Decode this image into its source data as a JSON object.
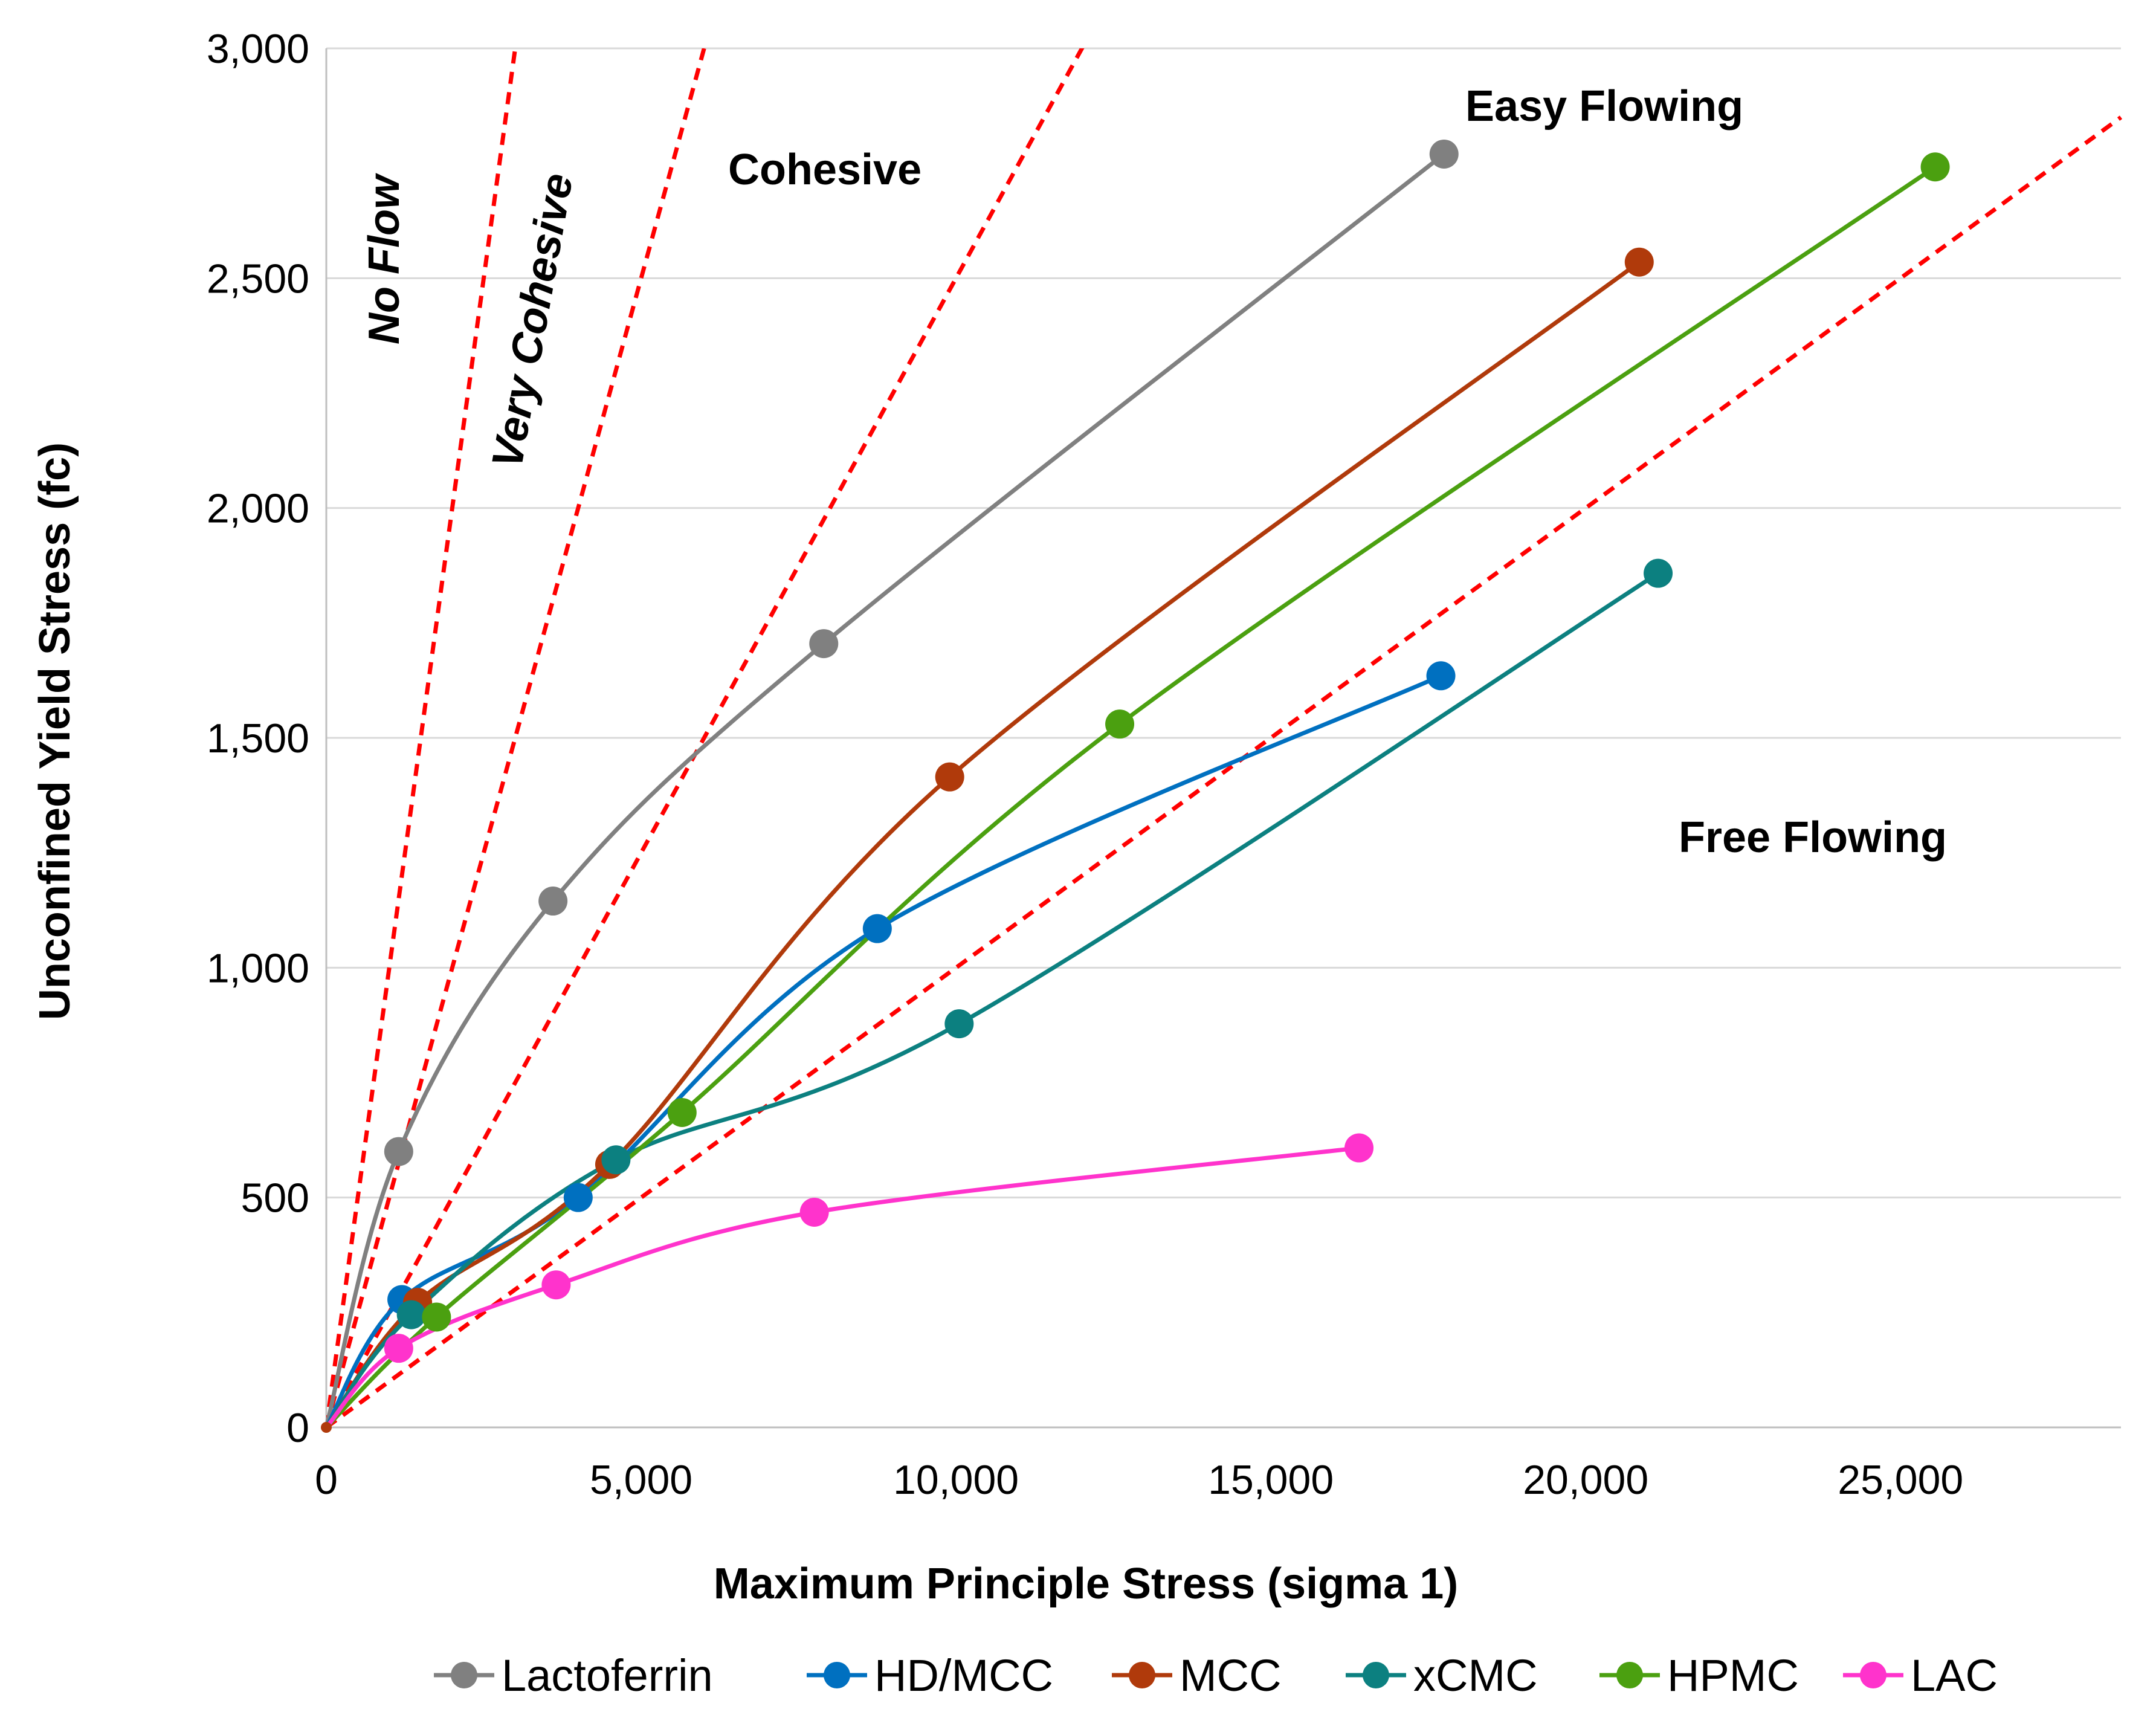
{
  "chart_data": {
    "type": "line",
    "title": "",
    "xlabel": "Maximum Principle Stress (sigma 1)",
    "ylabel": "Unconfined Yield Stress (fc)",
    "xlim": [
      0,
      28500
    ],
    "ylim": [
      0,
      3000
    ],
    "x_ticks": [
      0,
      5000,
      10000,
      15000,
      20000,
      25000
    ],
    "x_tick_labels": [
      "0",
      "5,000",
      "10,000",
      "15,000",
      "20,000",
      "25,000"
    ],
    "y_ticks": [
      0,
      500,
      1000,
      1500,
      2000,
      2500,
      3000
    ],
    "y_tick_labels": [
      "0",
      "500",
      "1,000",
      "1,500",
      "2,000",
      "2,500",
      "3,000"
    ],
    "grid": "horizontal",
    "legend_position": "bottom",
    "series": [
      {
        "name": "Lactoferrin",
        "color": "#808080",
        "points": [
          [
            1150,
            600
          ],
          [
            3600,
            1145
          ],
          [
            7900,
            1705
          ],
          [
            17750,
            2770
          ]
        ]
      },
      {
        "name": "HD/MCC",
        "color": "#0070C0",
        "points": [
          [
            1200,
            278
          ],
          [
            4000,
            500
          ],
          [
            8750,
            1085
          ],
          [
            17700,
            1635
          ]
        ]
      },
      {
        "name": "MCC",
        "color": "#B03A0B",
        "points": [
          [
            1450,
            272
          ],
          [
            4500,
            572
          ],
          [
            9900,
            1415
          ],
          [
            20850,
            2535
          ]
        ]
      },
      {
        "name": "xCMC",
        "color": "#0C8080",
        "points": [
          [
            1350,
            245
          ],
          [
            4600,
            582
          ],
          [
            10050,
            878
          ],
          [
            21150,
            1858
          ]
        ]
      },
      {
        "name": "HPMC",
        "color": "#4BA010",
        "points": [
          [
            1750,
            240
          ],
          [
            5650,
            685
          ],
          [
            12600,
            1530
          ],
          [
            25550,
            2742
          ]
        ]
      },
      {
        "name": "LAC",
        "color": "#FF33CC",
        "points": [
          [
            1150,
            172
          ],
          [
            3650,
            310
          ],
          [
            7750,
            468
          ],
          [
            16400,
            608
          ]
        ]
      }
    ],
    "flow_lines": [
      {
        "name": "No Flow boundary",
        "ffc": 1,
        "color": "#FF0000"
      },
      {
        "name": "Very Cohesive boundary",
        "ffc": 2,
        "color": "#FF0000"
      },
      {
        "name": "Cohesive boundary",
        "ffc": 4,
        "color": "#FF0000"
      },
      {
        "name": "Easy Flowing boundary",
        "ffc": 10,
        "color": "#FF0000"
      }
    ],
    "annotations": [
      "No Flow",
      "Very Cohesive",
      "Cohesive",
      "Easy Flowing",
      "Free Flowing"
    ]
  }
}
